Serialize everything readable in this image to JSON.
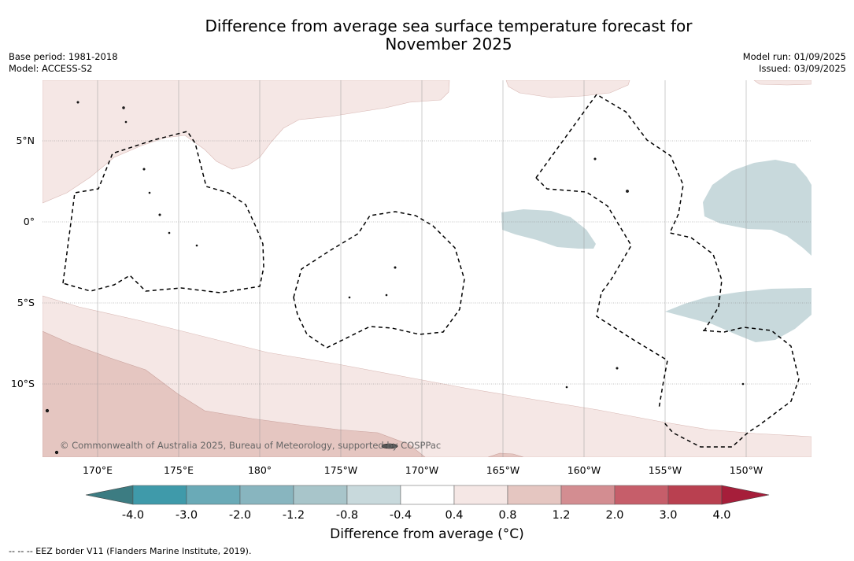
{
  "title_line1": "Difference from average sea surface temperature forecast for",
  "title_line2": "November 2025",
  "meta_left": [
    "Base period: 1981-2018",
    "Model: ACCESS-S2"
  ],
  "meta_right": [
    "Model run: 01/09/2025",
    "Issued: 03/09/2025"
  ],
  "copyright": "© Commonwealth of Australia 2025, Bureau of Meteorology, supported by COSPPac",
  "lat_labels": [
    {
      "lat": 5,
      "label": "5°N"
    },
    {
      "lat": 0,
      "label": "0°"
    },
    {
      "lat": -5,
      "label": "5°S"
    },
    {
      "lat": -10,
      "label": "10°S"
    }
  ],
  "lon_labels": [
    {
      "lon": 170,
      "label": "170°E"
    },
    {
      "lon": 175,
      "label": "175°E"
    },
    {
      "lon": 180,
      "label": "180°"
    },
    {
      "lon": 185,
      "label": "175°W"
    },
    {
      "lon": 190,
      "label": "170°W"
    },
    {
      "lon": 195,
      "label": "165°W"
    },
    {
      "lon": 200,
      "label": "160°W"
    },
    {
      "lon": 205,
      "label": "155°W"
    },
    {
      "lon": 210,
      "label": "150°W"
    }
  ],
  "colorbar": {
    "title": "Difference from average (°C)",
    "colors": [
      "#3f9aaa",
      "#6aaab7",
      "#88b5bf",
      "#a8c5ca",
      "#c8d9dc",
      "#ffffff",
      "#f5e7e5",
      "#e5c6c1",
      "#d38d91",
      "#c65e6a",
      "#b94050"
    ],
    "low_extend_color": "#3c7c82",
    "high_extend_color": "#a61e3a",
    "tick_labels": [
      "-4.0",
      "-3.0",
      "-2.0",
      "-1.2",
      "-0.8",
      "-0.4",
      "0.4",
      "0.8",
      "1.2",
      "2.0",
      "3.0",
      "4.0"
    ]
  },
  "eez_legend": "--  --  -- EEZ border V11 (Flanders Marine Institute, 2019)."
}
